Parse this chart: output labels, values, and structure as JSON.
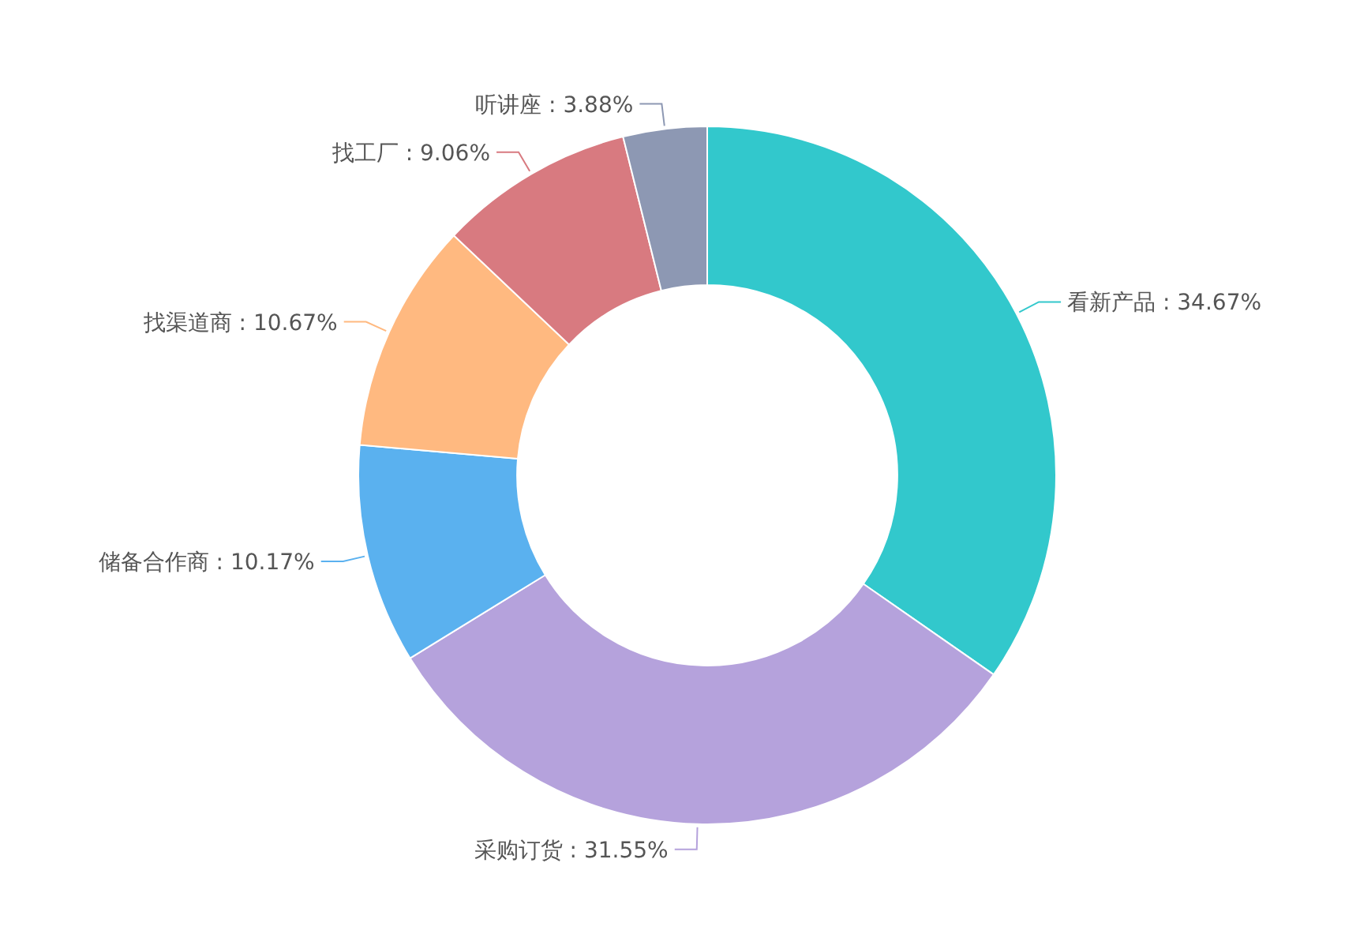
{
  "chart_data": {
    "type": "donut",
    "categories": [
      "看新产品",
      "采购订货",
      "储备合作商",
      "找渠道商",
      "找工厂",
      "听讲座"
    ],
    "values": [
      34.67,
      31.55,
      10.17,
      10.67,
      9.06,
      3.88
    ],
    "colors": [
      "#32c8cc",
      "#b5a2dc",
      "#5ab1ef",
      "#ffb980",
      "#d87a80",
      "#8d98b3"
    ],
    "value_labels": [
      ": 34.67%",
      ": 31.55%",
      ": 10.17%",
      ": 10.67%",
      ": 9.06%",
      ": 3.88%"
    ],
    "legend": false
  }
}
